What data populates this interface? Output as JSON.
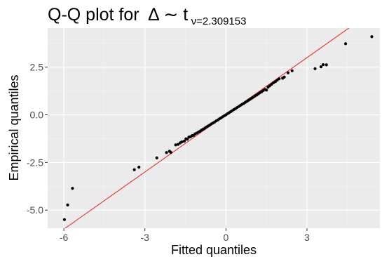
{
  "chart_data": {
    "type": "scatter",
    "title_parts": {
      "main": "Q-Q plot for",
      "symbol": "Δ ∼ t",
      "subscript": "ν=2.309153"
    },
    "xlabel": "Fitted quantiles",
    "ylabel": "Empirical quantiles",
    "xlim": [
      -6.6,
      5.7
    ],
    "ylim": [
      -5.95,
      4.55
    ],
    "x_ticks": [
      -6,
      -3,
      0,
      3
    ],
    "x_tick_labels": [
      "-6",
      "-3",
      "0",
      "3"
    ],
    "y_ticks": [
      -5.0,
      -2.5,
      0.0,
      2.5
    ],
    "y_tick_labels": [
      "-5.0",
      "-2.5",
      "0.0",
      "2.5"
    ],
    "grid": true,
    "background_color": "#ebebeb",
    "point_color": "#000000",
    "reference_line": {
      "slope": 1,
      "intercept": 0,
      "color": "#e8312f"
    },
    "points": [
      [
        -5.98,
        -5.5
      ],
      [
        -5.86,
        -4.73
      ],
      [
        -5.68,
        -3.86
      ],
      [
        -3.39,
        -2.88
      ],
      [
        -3.22,
        -2.75
      ],
      [
        -2.56,
        -2.26
      ],
      [
        -2.2,
        -1.98
      ],
      [
        -2.09,
        -1.91
      ],
      [
        -2.04,
        -1.97
      ],
      [
        -1.86,
        -1.58
      ],
      [
        -1.77,
        -1.55
      ],
      [
        -1.69,
        -1.47
      ],
      [
        -1.63,
        -1.42
      ],
      [
        -1.54,
        -1.38
      ],
      [
        -1.48,
        -1.26
      ],
      [
        -1.43,
        -1.28
      ],
      [
        -1.37,
        -1.17
      ],
      [
        -1.31,
        -1.15
      ],
      [
        -1.25,
        -1.09
      ],
      [
        -1.2,
        -1.08
      ],
      [
        -1.14,
        -1.0
      ],
      [
        -1.08,
        -0.96
      ],
      [
        -1.02,
        -0.91
      ],
      [
        -0.96,
        -0.86
      ],
      [
        -0.9,
        -0.8
      ],
      [
        -0.84,
        -0.75
      ],
      [
        -0.78,
        -0.7
      ],
      [
        -0.72,
        -0.64
      ],
      [
        -0.66,
        -0.59
      ],
      [
        -0.6,
        -0.54
      ],
      [
        -0.54,
        -0.48
      ],
      [
        -0.48,
        -0.43
      ],
      [
        -0.42,
        -0.38
      ],
      [
        -0.36,
        -0.32
      ],
      [
        -0.3,
        -0.27
      ],
      [
        -0.24,
        -0.21
      ],
      [
        -0.18,
        -0.16
      ],
      [
        -0.12,
        -0.1
      ],
      [
        -0.06,
        -0.05
      ],
      [
        0.0,
        0.0
      ],
      [
        0.06,
        0.06
      ],
      [
        0.12,
        0.11
      ],
      [
        0.18,
        0.17
      ],
      [
        0.24,
        0.22
      ],
      [
        0.3,
        0.28
      ],
      [
        0.36,
        0.33
      ],
      [
        0.42,
        0.39
      ],
      [
        0.48,
        0.44
      ],
      [
        0.54,
        0.5
      ],
      [
        0.6,
        0.55
      ],
      [
        0.66,
        0.6
      ],
      [
        0.72,
        0.66
      ],
      [
        0.78,
        0.71
      ],
      [
        0.84,
        0.77
      ],
      [
        0.9,
        0.82
      ],
      [
        0.96,
        0.88
      ],
      [
        1.02,
        0.93
      ],
      [
        1.08,
        0.99
      ],
      [
        1.14,
        1.04
      ],
      [
        1.2,
        1.1
      ],
      [
        1.26,
        1.16
      ],
      [
        1.32,
        1.21
      ],
      [
        1.38,
        1.27
      ],
      [
        1.44,
        1.33
      ],
      [
        1.5,
        1.3
      ],
      [
        1.56,
        1.45
      ],
      [
        1.62,
        1.52
      ],
      [
        1.69,
        1.6
      ],
      [
        1.76,
        1.68
      ],
      [
        1.83,
        1.74
      ],
      [
        1.9,
        1.82
      ],
      [
        1.97,
        1.89
      ],
      [
        2.1,
        1.92
      ],
      [
        2.16,
        1.98
      ],
      [
        2.3,
        2.2
      ],
      [
        2.45,
        2.31
      ],
      [
        3.3,
        2.42
      ],
      [
        3.52,
        2.52
      ],
      [
        3.6,
        2.63
      ],
      [
        3.72,
        2.62
      ],
      [
        4.43,
        3.73
      ],
      [
        5.4,
        4.1
      ]
    ]
  }
}
